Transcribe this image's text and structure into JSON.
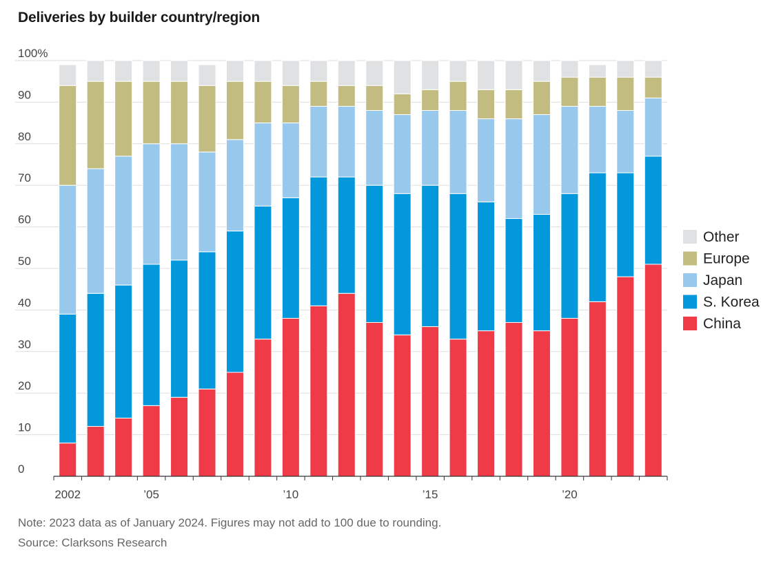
{
  "title": "Deliveries by builder country/region",
  "note": "Note: 2023 data as of January 2024. Figures may not add to 100 due to rounding.",
  "source": "Source: Clarksons Research",
  "chart_data": {
    "type": "bar",
    "stacked": true,
    "title": "Deliveries by builder country/region",
    "xlabel": "",
    "ylabel": "",
    "ylim": [
      0,
      100
    ],
    "y_ticks": [
      0,
      10,
      20,
      30,
      40,
      50,
      60,
      70,
      80,
      90,
      100
    ],
    "y_tick_labels": [
      "0",
      "10",
      "20",
      "30",
      "40",
      "50",
      "60",
      "70",
      "80",
      "90",
      "100%"
    ],
    "categories": [
      "2002",
      "2003",
      "2004",
      "2005",
      "2006",
      "2007",
      "2008",
      "2009",
      "2010",
      "2011",
      "2012",
      "2013",
      "2014",
      "2015",
      "2016",
      "2017",
      "2018",
      "2019",
      "2020",
      "2021",
      "2022",
      "2023"
    ],
    "x_tick_labels": [
      {
        "category": "2002",
        "label": "2002"
      },
      {
        "category": "2005",
        "label": "’05"
      },
      {
        "category": "2010",
        "label": "’10"
      },
      {
        "category": "2015",
        "label": "’15"
      },
      {
        "category": "2020",
        "label": "’20"
      }
    ],
    "grid": true,
    "legend_position": "right",
    "series": [
      {
        "name": "China",
        "color": "#ef3a47",
        "values": [
          8,
          12,
          14,
          17,
          19,
          21,
          25,
          33,
          38,
          41,
          44,
          37,
          34,
          36,
          33,
          35,
          37,
          35,
          38,
          42,
          48,
          51
        ]
      },
      {
        "name": "S. Korea",
        "color": "#0398dc",
        "values": [
          31,
          32,
          32,
          34,
          33,
          33,
          34,
          32,
          29,
          31,
          28,
          33,
          34,
          34,
          35,
          31,
          25,
          28,
          30,
          31,
          25,
          26
        ]
      },
      {
        "name": "Japan",
        "color": "#98c9ec",
        "values": [
          31,
          30,
          31,
          29,
          28,
          24,
          22,
          20,
          18,
          17,
          17,
          18,
          19,
          18,
          20,
          20,
          24,
          24,
          21,
          16,
          15,
          14
        ]
      },
      {
        "name": "Europe",
        "color": "#c2bc80",
        "values": [
          24,
          21,
          18,
          15,
          15,
          16,
          14,
          10,
          9,
          6,
          5,
          6,
          5,
          5,
          7,
          7,
          7,
          8,
          7,
          7,
          8,
          5
        ]
      },
      {
        "name": "Other",
        "color": "#e0e1e3",
        "values": [
          5,
          5,
          5,
          5,
          5,
          5,
          5,
          5,
          6,
          5,
          6,
          6,
          8,
          7,
          5,
          7,
          7,
          5,
          4,
          3,
          4,
          4
        ]
      }
    ],
    "legend_order": [
      "Other",
      "Europe",
      "Japan",
      "S. Korea",
      "China"
    ]
  }
}
